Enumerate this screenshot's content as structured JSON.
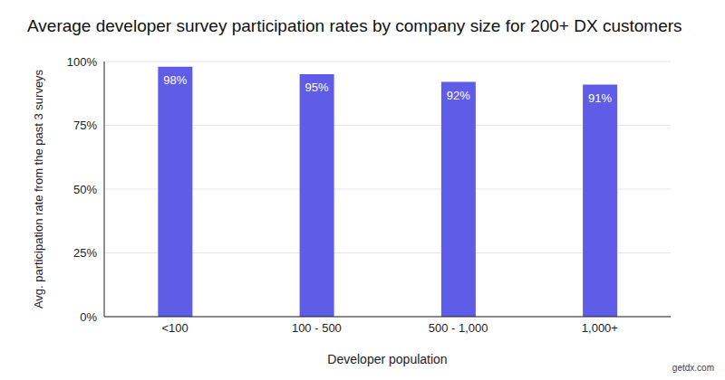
{
  "chart_data": {
    "type": "bar",
    "title": "Average developer survey participation rates by company size for 200+ DX customers",
    "x_label": "Developer population",
    "y_label": "Avg. participation rate from the past 3 surveys",
    "categories": [
      "<100",
      "100 - 500",
      "500 - 1,000",
      "1,000+"
    ],
    "values": [
      98,
      95,
      92,
      91
    ],
    "value_labels": [
      "98%",
      "95%",
      "92%",
      "91%"
    ],
    "data_labels": true,
    "color": "#5f5ce8",
    "ylim": [
      0,
      100
    ],
    "yticks": [
      {
        "value": 0,
        "label": "0%"
      },
      {
        "value": 25,
        "label": "25%"
      },
      {
        "value": 50,
        "label": "50%"
      },
      {
        "value": 75,
        "label": "75%"
      },
      {
        "value": 100,
        "label": "100%"
      }
    ],
    "grid": true,
    "annotations": [
      "getdx.com"
    ]
  }
}
